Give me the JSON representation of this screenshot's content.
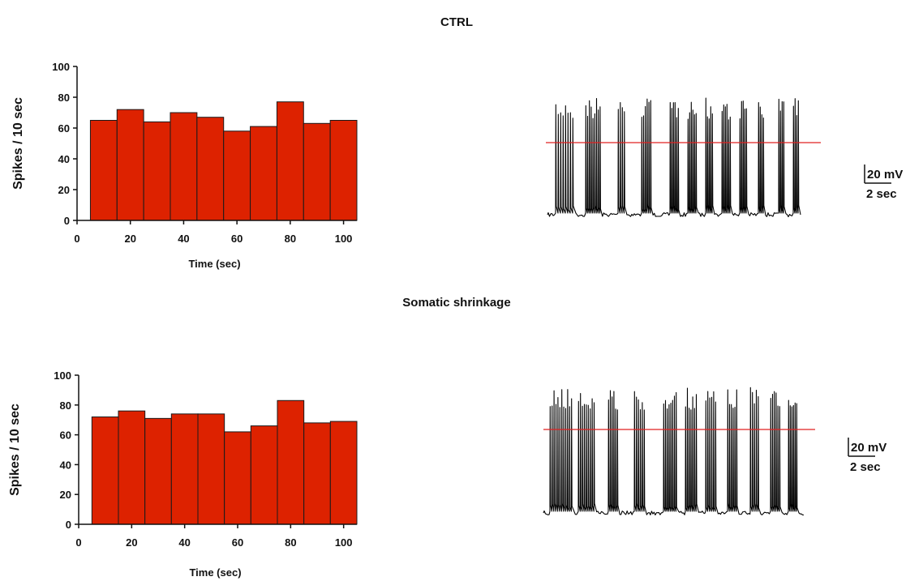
{
  "panels": [
    {
      "title": "CTRL",
      "scale_bar": {
        "voltage": "20 mV",
        "time": "2 sec"
      }
    },
    {
      "title": "Somatic shrinkage",
      "scale_bar": {
        "voltage": "20 mV",
        "time": "2 sec"
      }
    }
  ],
  "colors": {
    "bar_fill": "#dd2200",
    "bar_edge": "#1a1a1a",
    "trace": "#000000",
    "threshold_line": "#e02020"
  },
  "chart_data": [
    {
      "type": "bar",
      "title": "",
      "xlabel": "Time (sec)",
      "ylabel": "Spikes / 10 sec",
      "x": [
        10,
        20,
        30,
        40,
        50,
        60,
        70,
        80,
        90,
        100
      ],
      "values": [
        65,
        72,
        64,
        70,
        67,
        58,
        61,
        77,
        63,
        65
      ],
      "bin_width": 10,
      "xlim": [
        0,
        105
      ],
      "ylim": [
        0,
        100
      ],
      "xticks": [
        0,
        20,
        40,
        60,
        80,
        100
      ],
      "yticks": [
        0,
        20,
        40,
        60,
        80,
        100
      ]
    },
    {
      "type": "bar",
      "title": "",
      "xlabel": "Time (sec)",
      "ylabel": "Spikes / 10 sec",
      "x": [
        10,
        20,
        30,
        40,
        50,
        60,
        70,
        80,
        90,
        100
      ],
      "values": [
        72,
        76,
        71,
        74,
        74,
        62,
        66,
        83,
        68,
        69
      ],
      "bin_width": 10,
      "xlim": [
        0,
        105
      ],
      "ylim": [
        0,
        100
      ],
      "xticks": [
        0,
        20,
        40,
        60,
        80,
        100
      ],
      "yticks": [
        0,
        20,
        40,
        60,
        80,
        100
      ]
    }
  ]
}
